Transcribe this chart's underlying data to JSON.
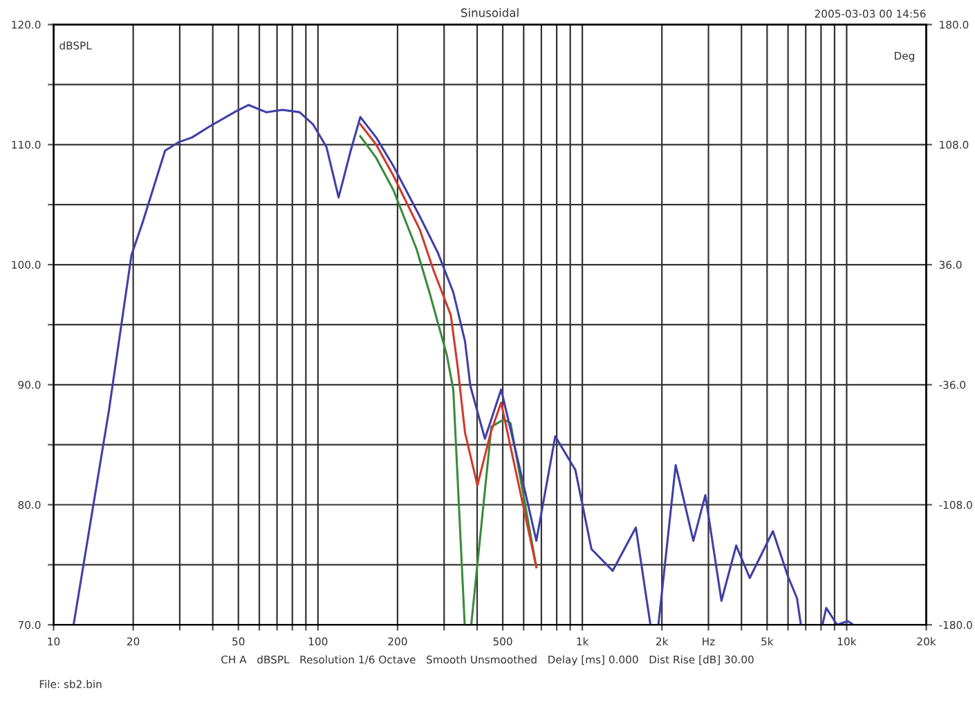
{
  "chart_data": {
    "type": "line",
    "title": "Sinusoidal",
    "ylabel": "dBSPL",
    "y2label": "Deg",
    "annotations": [
      "2005-03-03 00 14:56",
      "CH A   dBSPL   Resolution 1/6 Octave   Smooth Unsmoothed   Delay [ms] 0.000   Dist Rise [dB] 30.00",
      "File: sb2.bin"
    ],
    "log": "x",
    "grid": true,
    "line_style": "solid",
    "marker": "none",
    "xlim": [
      10,
      20000
    ],
    "ylim": [
      70,
      120
    ],
    "y2lim": [
      -180,
      180
    ],
    "xticks": [
      {
        "value": 10,
        "label": "10"
      },
      {
        "value": 20,
        "label": "20"
      },
      {
        "value": 30,
        "label": null
      },
      {
        "value": 40,
        "label": null
      },
      {
        "value": 50,
        "label": "50"
      },
      {
        "value": 60,
        "label": null
      },
      {
        "value": 70,
        "label": null
      },
      {
        "value": 80,
        "label": null
      },
      {
        "value": 90,
        "label": null
      },
      {
        "value": 100,
        "label": "100"
      },
      {
        "value": 200,
        "label": "200"
      },
      {
        "value": 300,
        "label": null
      },
      {
        "value": 400,
        "label": null
      },
      {
        "value": 500,
        "label": "500"
      },
      {
        "value": 600,
        "label": null
      },
      {
        "value": 700,
        "label": null
      },
      {
        "value": 800,
        "label": null
      },
      {
        "value": 900,
        "label": null
      },
      {
        "value": 1000,
        "label": "1k"
      },
      {
        "value": 2000,
        "label": "2k"
      },
      {
        "value": 3000,
        "label": "Hz"
      },
      {
        "value": 4000,
        "label": null
      },
      {
        "value": 5000,
        "label": "5k"
      },
      {
        "value": 6000,
        "label": null
      },
      {
        "value": 7000,
        "label": null
      },
      {
        "value": 8000,
        "label": null
      },
      {
        "value": 9000,
        "label": null
      },
      {
        "value": 10000,
        "label": "10k"
      },
      {
        "value": 20000,
        "label": "20k"
      }
    ],
    "yticks": [
      {
        "value": 70,
        "label": "70.0"
      },
      {
        "value": 75,
        "label": null
      },
      {
        "value": 80,
        "label": "80.0"
      },
      {
        "value": 85,
        "label": null
      },
      {
        "value": 90,
        "label": "90.0"
      },
      {
        "value": 95,
        "label": null
      },
      {
        "value": 100,
        "label": "100.0"
      },
      {
        "value": 105,
        "label": null
      },
      {
        "value": 110,
        "label": "110.0"
      },
      {
        "value": 115,
        "label": null
      },
      {
        "value": 120,
        "label": "120.0"
      }
    ],
    "y2ticks": [
      {
        "value": -180,
        "label": "-180.0"
      },
      {
        "value": -108,
        "label": "-108.0"
      },
      {
        "value": -36,
        "label": "-36.0"
      },
      {
        "value": 36,
        "label": "36.0"
      },
      {
        "value": 108,
        "label": "108.0"
      },
      {
        "value": 180,
        "label": "180.0"
      }
    ],
    "series": [
      {
        "color": "#3a8a3a",
        "x": [
          144.6,
          166,
          193,
          236,
          264,
          307,
          325,
          359,
          370,
          380,
          453,
          504,
          535,
          670
        ],
        "values": [
          110.7,
          108.9,
          106.2,
          101.3,
          97.7,
          92.5,
          89.6,
          70,
          null,
          70,
          86.5,
          87.1,
          86.8,
          74.8
        ]
      },
      {
        "color": "#d03a2a",
        "x": [
          144.6,
          166,
          193,
          243,
          274,
          318,
          338,
          360,
          401,
          450,
          493,
          670
        ],
        "values": [
          111.7,
          110,
          107.4,
          102.9,
          99.5,
          95.8,
          91.4,
          86,
          81.6,
          86,
          88.5,
          74.8
        ]
      },
      {
        "color": "#3f3fa8",
        "x": [
          11.9,
          16.2,
          19.7,
          21.7,
          26.4,
          29.7,
          33.4,
          38.8,
          49.2,
          54.7,
          63.7,
          73.3,
          85.2,
          95.7,
          107.7,
          119.7,
          133,
          144.6,
          166,
          193,
          243,
          284,
          325,
          360,
          377,
          428,
          493,
          576,
          670,
          790,
          941,
          1083,
          1303,
          1594,
          1748,
          1810,
          1870,
          1940,
          2255,
          2630,
          2920,
          3360,
          3820,
          4300,
          5260,
          5980,
          6490,
          6710,
          7500,
          8100,
          8370,
          9200,
          10100,
          10600
        ],
        "values": [
          70,
          87.9,
          100.8,
          103.5,
          109.5,
          110.2,
          110.6,
          111.5,
          112.8,
          113.3,
          112.7,
          112.9,
          112.7,
          111.7,
          109.8,
          105.6,
          109.5,
          112.3,
          110.6,
          108.2,
          104,
          101,
          97.7,
          93.6,
          89.9,
          85.5,
          89.6,
          83.3,
          77,
          85.7,
          82.9,
          76.3,
          74.5,
          78.1,
          72.2,
          70,
          null,
          70,
          83.3,
          77,
          80.8,
          72,
          76.6,
          73.9,
          77.8,
          74.1,
          72.2,
          70,
          null,
          70,
          71.4,
          70,
          70.3,
          70
        ]
      }
    ]
  }
}
